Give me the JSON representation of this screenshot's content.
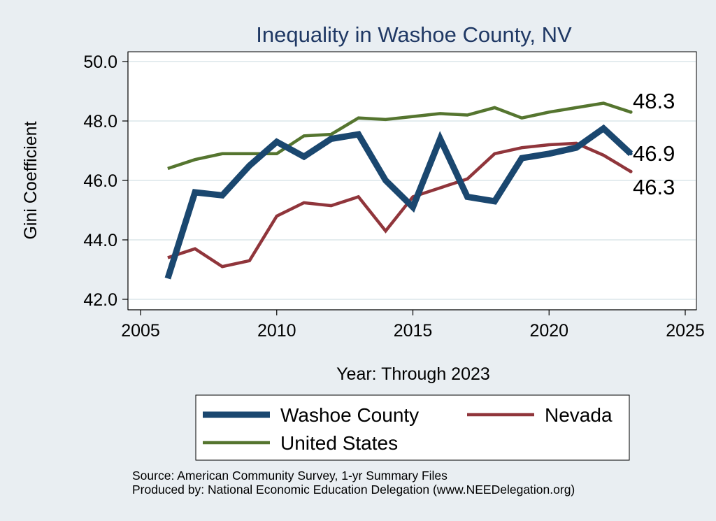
{
  "chart_data": {
    "type": "line",
    "title": "Inequality in Washoe County, NV",
    "xlabel": "Year: Through 2023",
    "ylabel": "Gini Coefficient",
    "xlim": [
      2005,
      2025
    ],
    "ylim": [
      42.0,
      50.0
    ],
    "xticks": [
      "2005",
      "2010",
      "2015",
      "2020",
      "2025"
    ],
    "yticks": [
      "42.0",
      "44.0",
      "46.0",
      "48.0",
      "50.0"
    ],
    "grid": true,
    "legend_position": "bottom",
    "x": [
      2006,
      2007,
      2008,
      2009,
      2010,
      2011,
      2012,
      2013,
      2014,
      2015,
      2016,
      2017,
      2018,
      2019,
      2020,
      2021,
      2022,
      2023
    ],
    "series": [
      {
        "name": "Washoe County",
        "color": "#1a476f",
        "values": [
          42.7,
          45.6,
          45.5,
          46.5,
          47.3,
          46.8,
          47.4,
          47.55,
          46.0,
          45.1,
          47.4,
          45.45,
          45.3,
          46.75,
          46.9,
          47.1,
          47.75,
          46.9
        ]
      },
      {
        "name": "Nevada",
        "color": "#90353b",
        "values": [
          43.4,
          43.7,
          43.1,
          43.3,
          44.8,
          45.25,
          45.15,
          45.45,
          44.3,
          45.45,
          45.75,
          46.05,
          46.9,
          47.1,
          47.2,
          47.25,
          46.85,
          46.3
        ]
      },
      {
        "name": "United States",
        "color": "#55752f",
        "values": [
          46.4,
          46.7,
          46.9,
          46.9,
          46.9,
          47.5,
          47.55,
          48.1,
          48.05,
          48.15,
          48.25,
          48.2,
          48.45,
          48.1,
          48.3,
          48.45,
          48.6,
          48.3
        ]
      }
    ],
    "end_labels": [
      "46.9",
      "46.3",
      "48.3"
    ],
    "source_lines": [
      "Source: American Community Survey, 1-yr Summary Files",
      "Produced by: National Economic Education Delegation (www.NEEDelegation.org)"
    ]
  }
}
